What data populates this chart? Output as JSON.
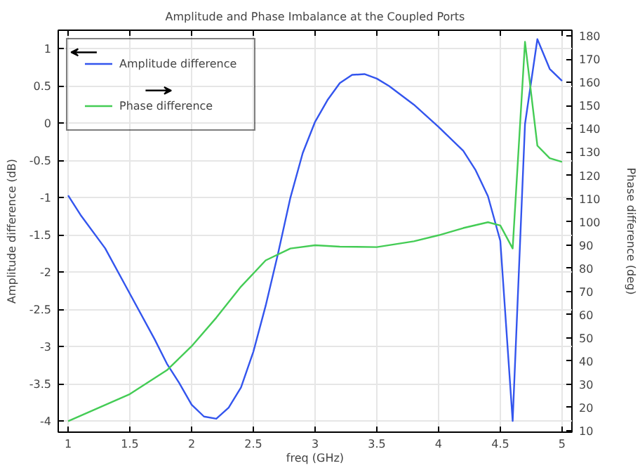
{
  "chart_data": {
    "type": "line",
    "title": "Amplitude and Phase Imbalance at the Coupled Ports",
    "xlabel": "freq (GHz)",
    "ylabel": "Amplitude difference (dB)",
    "y2label": "Phase difference (deg)",
    "xlim": [
      0.92,
      5.08
    ],
    "xticks": [
      1,
      1.5,
      2,
      2.5,
      3,
      3.5,
      4,
      4.5,
      5
    ],
    "ylim": [
      -4.15,
      1.25
    ],
    "yticks": [
      -4,
      -3.5,
      -3,
      -2.5,
      -2,
      -1.5,
      -1,
      -0.5,
      0,
      0.5,
      1
    ],
    "y2lim": [
      9.4,
      182.5
    ],
    "y2ticks": [
      10,
      20,
      30,
      40,
      50,
      60,
      70,
      80,
      90,
      100,
      110,
      120,
      130,
      140,
      150,
      160,
      170,
      180
    ],
    "grid": true,
    "legend": "top left",
    "line_style": "solid",
    "marker": "none",
    "series": [
      {
        "name": "Amplitude difference",
        "color": "#3355ee",
        "x": [
          1,
          1.1,
          1.3,
          1.5,
          1.7,
          1.8,
          1.9,
          2.0,
          2.1,
          2.2,
          2.3,
          2.4,
          2.5,
          2.6,
          2.7,
          2.8,
          2.9,
          3.0,
          3.1,
          3.2,
          3.3,
          3.4,
          3.5,
          3.6,
          3.8,
          4.0,
          4.2,
          4.3,
          4.4,
          4.5,
          4.6,
          4.7,
          4.8,
          4.9,
          5.0
        ],
        "values": [
          -0.97,
          -1.23,
          -1.68,
          -2.29,
          -2.9,
          -3.23,
          -3.49,
          -3.78,
          -3.94,
          -3.97,
          -3.82,
          -3.55,
          -3.07,
          -2.45,
          -1.75,
          -1.0,
          -0.4,
          0.02,
          0.31,
          0.54,
          0.65,
          0.66,
          0.6,
          0.5,
          0.25,
          -0.05,
          -0.37,
          -0.63,
          -0.98,
          -1.58,
          -4.0,
          -0.01,
          1.13,
          0.73,
          0.57
        ]
      },
      {
        "name": "Phase difference",
        "color": "#44cc55",
        "axis": "y2",
        "x": [
          1,
          1.5,
          1.8,
          2.0,
          2.2,
          2.4,
          2.6,
          2.8,
          3.0,
          3.2,
          3.5,
          3.8,
          4.0,
          4.2,
          4.4,
          4.5,
          4.6,
          4.7,
          4.8,
          4.9,
          5.0
        ],
        "values": [
          14.1,
          25.8,
          36.1,
          46.4,
          58.7,
          72.1,
          83.4,
          88.5,
          89.9,
          89.3,
          89.1,
          91.6,
          94.2,
          97.3,
          99.8,
          98.4,
          88.5,
          177.5,
          132.8,
          127.4,
          125.8
        ]
      }
    ]
  }
}
